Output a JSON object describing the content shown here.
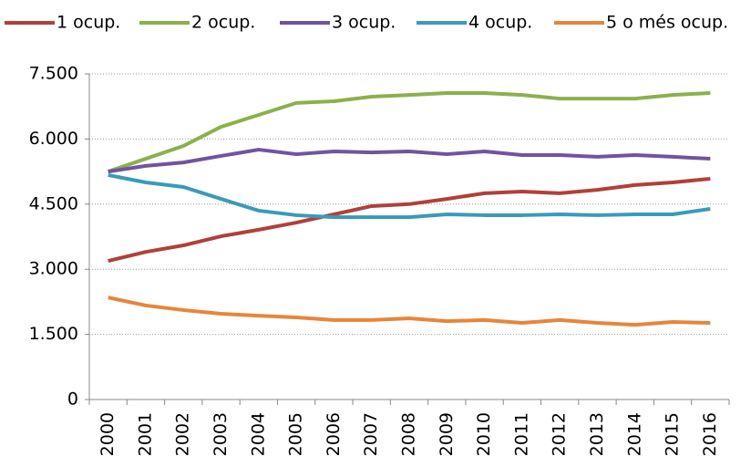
{
  "chart_data": {
    "type": "line",
    "categories": [
      "2000",
      "2001",
      "2002",
      "2003",
      "2004",
      "2005",
      "2006",
      "2007",
      "2008",
      "2009",
      "2010",
      "2011",
      "2012",
      "2013",
      "2014",
      "2015",
      "2016"
    ],
    "series": [
      {
        "name": "1 ocup.",
        "color": "#b0403c",
        "values": [
          3193,
          3400,
          3550,
          3760,
          3910,
          4075,
          4265,
          4455,
          4500,
          4620,
          4750,
          4790,
          4750,
          4830,
          4940,
          5000,
          5085
        ]
      },
      {
        "name": "2 ocup.",
        "color": "#8cb04c",
        "values": [
          5250,
          5545,
          5840,
          6280,
          6555,
          6830,
          6870,
          6975,
          7015,
          7060,
          7060,
          7015,
          6930,
          6930,
          6930,
          7015,
          7060
        ]
      },
      {
        "name": "3 ocup.",
        "color": "#7054a0",
        "values": [
          5250,
          5380,
          5460,
          5610,
          5755,
          5650,
          5715,
          5690,
          5715,
          5650,
          5715,
          5630,
          5630,
          5590,
          5630,
          5590,
          5545
        ]
      },
      {
        "name": "4 ocup.",
        "color": "#3a9bb5",
        "values": [
          5170,
          5000,
          4895,
          4620,
          4350,
          4245,
          4200,
          4200,
          4200,
          4265,
          4245,
          4245,
          4265,
          4245,
          4265,
          4265,
          4390
        ]
      },
      {
        "name": "5 o més ocup.",
        "color": "#e8853a",
        "values": [
          2350,
          2165,
          2060,
          1975,
          1930,
          1890,
          1830,
          1830,
          1870,
          1805,
          1830,
          1765,
          1830,
          1765,
          1720,
          1785,
          1765
        ]
      }
    ],
    "ylim": [
      0,
      7500
    ],
    "yticks": [
      0,
      {
        "value": 1500,
        "label": "1.500"
      },
      {
        "value": 3000,
        "label": "3.000"
      },
      {
        "value": 4500,
        "label": "4.500"
      },
      {
        "value": 6000,
        "label": "6.000"
      },
      {
        "value": 7500,
        "label": "7.500"
      }
    ],
    "grid": true,
    "legend": "top"
  }
}
